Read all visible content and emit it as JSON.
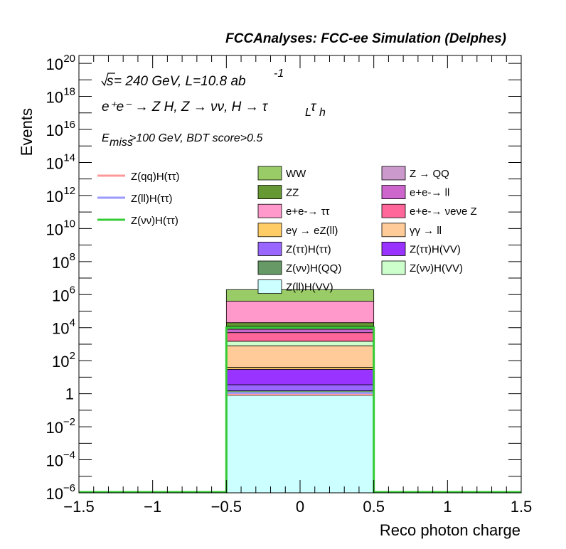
{
  "chart_data": {
    "type": "bar",
    "title": "FCCAnalyses: FCC-ee Simulation (Delphes)",
    "xlabel": "Reco photon charge",
    "ylabel": "Events",
    "xlim": [
      -1.5,
      1.5
    ],
    "ylim": [
      1e-06,
      3e+20
    ],
    "log_y": true,
    "grid": false,
    "bin": [
      -0.5,
      0.5
    ],
    "x_ticks": [
      {
        "value": -1.5,
        "label": "−1.5"
      },
      {
        "value": -1,
        "label": "−1"
      },
      {
        "value": -0.5,
        "label": "−0.5"
      },
      {
        "value": 0,
        "label": "0"
      },
      {
        "value": 0.5,
        "label": "0.5"
      },
      {
        "value": 1,
        "label": "1"
      },
      {
        "value": 1.5,
        "label": "1.5"
      }
    ],
    "y_ticks": [
      {
        "exp": -6,
        "base": "10",
        "sup": "−6"
      },
      {
        "exp": -4,
        "base": "10",
        "sup": "−4"
      },
      {
        "exp": -2,
        "base": "10",
        "sup": "−2"
      },
      {
        "exp": 0,
        "base": "1",
        "sup": ""
      },
      {
        "exp": 2,
        "base": "10",
        "sup": "2"
      },
      {
        "exp": 4,
        "base": "10",
        "sup": "4"
      },
      {
        "exp": 6,
        "base": "10",
        "sup": "6"
      },
      {
        "exp": 8,
        "base": "10",
        "sup": "8"
      },
      {
        "exp": 10,
        "base": "10",
        "sup": "10"
      },
      {
        "exp": 12,
        "base": "10",
        "sup": "12"
      },
      {
        "exp": 14,
        "base": "10",
        "sup": "14"
      },
      {
        "exp": 16,
        "base": "10",
        "sup": "16"
      },
      {
        "exp": 18,
        "base": "10",
        "sup": "18"
      },
      {
        "exp": 20,
        "base": "10",
        "sup": "20"
      }
    ],
    "stack_order_bottom_to_top": [
      "Z(ll)H(VV)",
      "Z(νν)H(QQ)",
      "Z(ττ)H(ττ)",
      "Z(ττ)H(VV)",
      "eγ → eZ(ll)",
      "γγ → ll",
      "Z(νν)H(VV)",
      "e+e-→ νeνe Z",
      "e+e-→ ll",
      "Z → QQ",
      "ZZ",
      "e+e-→ ττ",
      "WW"
    ],
    "stack_values_cumulative": [
      0.8,
      1.5,
      3.5,
      30,
      40,
      800,
      1500,
      5000,
      8000,
      12000,
      20000,
      400000,
      2000000
    ],
    "backgrounds": [
      {
        "label": "WW",
        "value": 1600000,
        "color": "#99cc66"
      },
      {
        "label": "ZZ",
        "value": 8000,
        "color": "#669933"
      },
      {
        "label": "e+e-→ ττ",
        "value": 380000,
        "color": "#ff99cc"
      },
      {
        "label": "eγ → eZ(ll)",
        "value": 10,
        "color": "#ffcc66"
      },
      {
        "label": "Z(ττ)H(ττ)",
        "value": 2,
        "color": "#9966ff"
      },
      {
        "label": "Z(νν)H(QQ)",
        "value": 0.7,
        "color": "#669966"
      },
      {
        "label": "Z(ll)H(VV)",
        "value": 0.8,
        "color": "#ccffff"
      },
      {
        "label": "Z → QQ",
        "value": 4000,
        "color": "#cc99cc"
      },
      {
        "label": "e+e-→ ll",
        "value": 3000,
        "color": "#cc66cc"
      },
      {
        "label": "e+e-→ νeνe Z",
        "value": 3500,
        "color": "#ff6699"
      },
      {
        "label": "γγ → ll",
        "value": 760,
        "color": "#ffcc99"
      },
      {
        "label": "Z(ττ)H(VV)",
        "value": 26.5,
        "color": "#9933ff"
      },
      {
        "label": "Z(νν)H(VV)",
        "value": 700,
        "color": "#ccffcc"
      }
    ],
    "signals": [
      {
        "label": "Z(qq)H(ττ)",
        "value": 0.9,
        "color": "#ff9999"
      },
      {
        "label": "Z(ll)H(ττ)",
        "value": 1.1,
        "color": "#9999ff"
      },
      {
        "label": "Z(νν)H(ττ)",
        "value": 10000,
        "color": "#33cc33"
      }
    ],
    "annotations": {
      "energy_sqrt": "s",
      "energy": " = 240 GeV, L=10.8 ab",
      "energy_sup": "-1",
      "process": "e⁺e⁻ → Z H, Z  → νν, H → τ",
      "process_sub1": "L",
      "process_tau": "τ",
      "process_sub2": "h",
      "cut_e": "E",
      "cut_sub": "miss",
      "cut_rest": ">100 GeV, BDT score>0.5"
    },
    "legend_placement": "upper-middle"
  }
}
